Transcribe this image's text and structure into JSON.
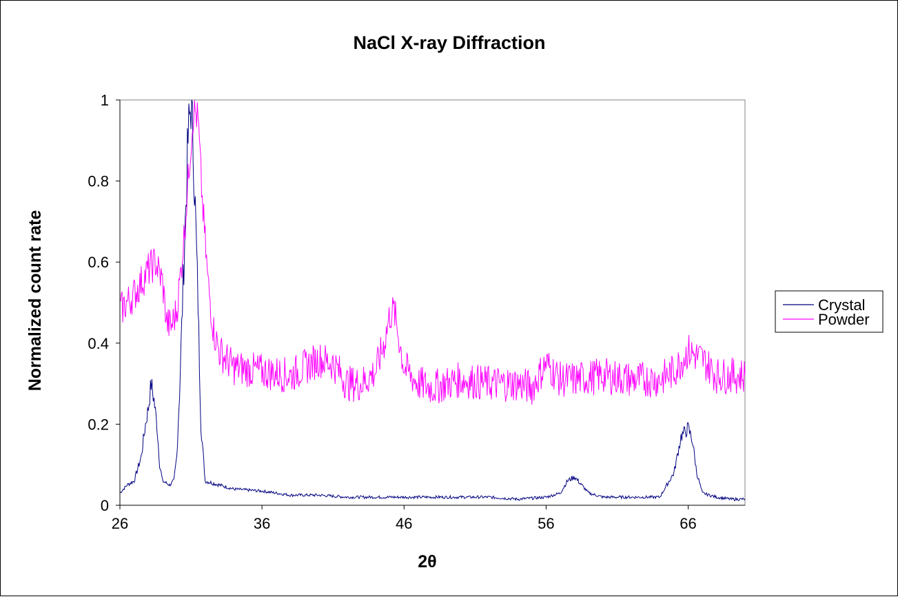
{
  "chart_data": {
    "type": "line",
    "title": "NaCl X-ray Diffraction",
    "xlabel": "2θ",
    "ylabel": "Normalized count rate",
    "xlim": [
      26,
      70
    ],
    "ylim": [
      0,
      1.0
    ],
    "x_ticks": [
      "26",
      "36",
      "46",
      "56",
      "66"
    ],
    "y_ticks": [
      "0",
      "0.2",
      "0.4",
      "0.6",
      "0.8",
      "1"
    ],
    "grid": false,
    "legend_position": "right",
    "series": [
      {
        "name": "Crystal",
        "color": "#000080",
        "points": [
          [
            26,
            0.03
          ],
          [
            26.5,
            0.05
          ],
          [
            27,
            0.06
          ],
          [
            27.5,
            0.12
          ],
          [
            27.8,
            0.2
          ],
          [
            28,
            0.24
          ],
          [
            28.2,
            0.3
          ],
          [
            28.4,
            0.26
          ],
          [
            28.6,
            0.2
          ],
          [
            28.8,
            0.1
          ],
          [
            29,
            0.06
          ],
          [
            29.5,
            0.05
          ],
          [
            29.8,
            0.06
          ],
          [
            30,
            0.12
          ],
          [
            30.2,
            0.28
          ],
          [
            30.5,
            0.6
          ],
          [
            30.8,
            0.9
          ],
          [
            31,
            1.0
          ],
          [
            31.2,
            0.85
          ],
          [
            31.5,
            0.5
          ],
          [
            31.7,
            0.2
          ],
          [
            32,
            0.06
          ],
          [
            33,
            0.05
          ],
          [
            34,
            0.04
          ],
          [
            36,
            0.035
          ],
          [
            38,
            0.025
          ],
          [
            40,
            0.025
          ],
          [
            42,
            0.02
          ],
          [
            44,
            0.02
          ],
          [
            46,
            0.02
          ],
          [
            48,
            0.02
          ],
          [
            50,
            0.02
          ],
          [
            52,
            0.02
          ],
          [
            54,
            0.015
          ],
          [
            56,
            0.02
          ],
          [
            57,
            0.03
          ],
          [
            57.5,
            0.06
          ],
          [
            58,
            0.07
          ],
          [
            58.5,
            0.05
          ],
          [
            59,
            0.03
          ],
          [
            60,
            0.02
          ],
          [
            62,
            0.02
          ],
          [
            64,
            0.02
          ],
          [
            65,
            0.08
          ],
          [
            65.5,
            0.17
          ],
          [
            66,
            0.19
          ],
          [
            66.3,
            0.16
          ],
          [
            66.6,
            0.08
          ],
          [
            67,
            0.03
          ],
          [
            68,
            0.02
          ],
          [
            69,
            0.015
          ],
          [
            70,
            0.015
          ]
        ]
      },
      {
        "name": "Powder",
        "color": "#FF00FF",
        "points": [
          [
            26,
            0.48
          ],
          [
            26.5,
            0.5
          ],
          [
            27,
            0.52
          ],
          [
            27.5,
            0.55
          ],
          [
            28,
            0.58
          ],
          [
            28.5,
            0.6
          ],
          [
            29,
            0.55
          ],
          [
            29.3,
            0.45
          ],
          [
            29.6,
            0.44
          ],
          [
            30,
            0.48
          ],
          [
            30.3,
            0.58
          ],
          [
            30.6,
            0.7
          ],
          [
            30.9,
            0.85
          ],
          [
            31.2,
            0.98
          ],
          [
            31.5,
            0.95
          ],
          [
            31.8,
            0.75
          ],
          [
            32.2,
            0.55
          ],
          [
            32.6,
            0.43
          ],
          [
            33,
            0.38
          ],
          [
            34,
            0.34
          ],
          [
            36,
            0.33
          ],
          [
            38,
            0.32
          ],
          [
            40,
            0.36
          ],
          [
            41,
            0.35
          ],
          [
            42,
            0.3
          ],
          [
            43,
            0.3
          ],
          [
            44,
            0.33
          ],
          [
            44.6,
            0.4
          ],
          [
            45,
            0.47
          ],
          [
            45.3,
            0.48
          ],
          [
            45.6,
            0.42
          ],
          [
            46,
            0.34
          ],
          [
            47,
            0.3
          ],
          [
            48,
            0.29
          ],
          [
            50,
            0.31
          ],
          [
            52,
            0.3
          ],
          [
            54,
            0.3
          ],
          [
            55,
            0.29
          ],
          [
            56,
            0.35
          ],
          [
            57,
            0.31
          ],
          [
            58,
            0.31
          ],
          [
            60,
            0.32
          ],
          [
            62,
            0.31
          ],
          [
            64,
            0.31
          ],
          [
            65,
            0.33
          ],
          [
            66,
            0.38
          ],
          [
            67,
            0.36
          ],
          [
            68,
            0.32
          ],
          [
            69,
            0.32
          ],
          [
            70,
            0.32
          ]
        ]
      }
    ]
  }
}
